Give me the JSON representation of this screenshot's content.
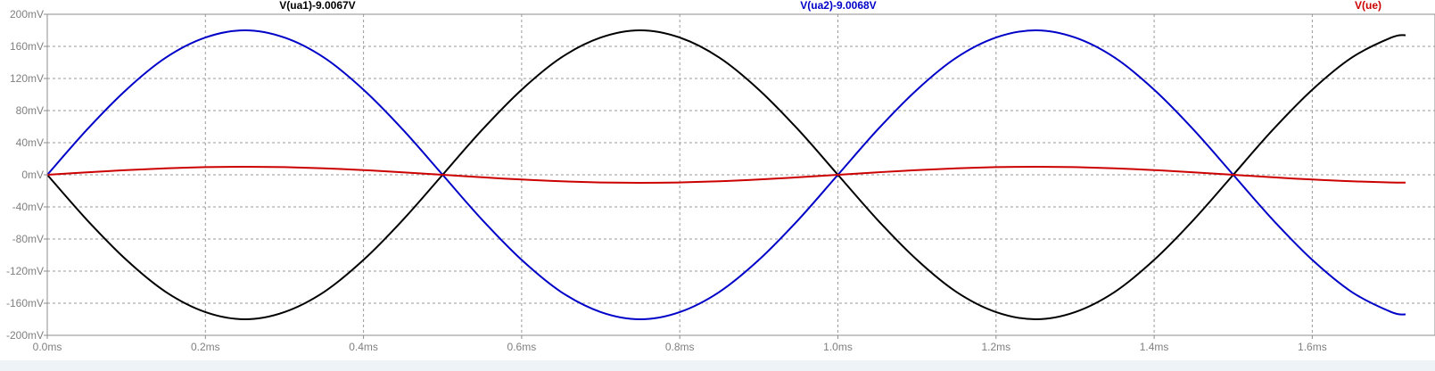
{
  "chart_data": {
    "type": "line",
    "title": "",
    "xlabel": "",
    "ylabel": "",
    "x_unit": "ms",
    "y_unit": "mV",
    "xlim": [
      0.0,
      1.718
    ],
    "ylim": [
      -200,
      200
    ],
    "grid": true,
    "x_ticks": [
      "0.0ms",
      "0.2ms",
      "0.4ms",
      "0.6ms",
      "0.8ms",
      "1.0ms",
      "1.2ms",
      "1.4ms",
      "1.6ms"
    ],
    "x_tick_values": [
      0.0,
      0.2,
      0.4,
      0.6,
      0.8,
      1.0,
      1.2,
      1.4,
      1.6
    ],
    "y_ticks": [
      "200mV",
      "160mV",
      "120mV",
      "80mV",
      "40mV",
      "0mV",
      "-40mV",
      "-80mV",
      "-120mV",
      "-160mV",
      "-200mV"
    ],
    "y_tick_values": [
      200,
      160,
      120,
      80,
      40,
      0,
      -40,
      -80,
      -120,
      -160,
      -200
    ],
    "x": [
      0.0,
      0.05,
      0.1,
      0.15,
      0.2,
      0.25,
      0.3,
      0.35,
      0.4,
      0.45,
      0.5,
      0.55,
      0.6,
      0.65,
      0.7,
      0.75,
      0.8,
      0.85,
      0.9,
      0.95,
      1.0,
      1.05,
      1.1,
      1.15,
      1.2,
      1.25,
      1.3,
      1.35,
      1.4,
      1.45,
      1.5,
      1.55,
      1.6,
      1.65,
      1.7,
      1.718
    ],
    "series": [
      {
        "name": "V(ua1)-9.0067V",
        "color": "#000000",
        "values": [
          0,
          -56,
          -106,
          -146,
          -171,
          -180,
          -171,
          -146,
          -106,
          -56,
          0,
          56,
          106,
          146,
          171,
          180,
          171,
          146,
          106,
          56,
          0,
          -56,
          -106,
          -146,
          -171,
          -180,
          -171,
          -146,
          -106,
          -56,
          0,
          56,
          106,
          146,
          171,
          174
        ]
      },
      {
        "name": "V(ua2)-9.0068V",
        "color": "#0000c8",
        "values": [
          0,
          56,
          106,
          146,
          171,
          180,
          171,
          146,
          106,
          56,
          0,
          -56,
          -106,
          -146,
          -171,
          -180,
          -171,
          -146,
          -106,
          -56,
          0,
          56,
          106,
          146,
          171,
          180,
          171,
          146,
          106,
          56,
          0,
          -56,
          -106,
          -146,
          -171,
          -174
        ]
      },
      {
        "name": "V(ue)",
        "color": "#cc0000",
        "values": [
          0,
          3.1,
          5.9,
          8.1,
          9.5,
          10,
          9.5,
          8.1,
          5.9,
          3.1,
          0,
          -3.1,
          -5.9,
          -8.1,
          -9.5,
          -10,
          -9.5,
          -8.1,
          -5.9,
          -3.1,
          0,
          3.1,
          5.9,
          8.1,
          9.5,
          10,
          9.5,
          8.1,
          5.9,
          3.1,
          0,
          -3.1,
          -5.9,
          -8.1,
          -9.5,
          -9.7
        ]
      }
    ]
  }
}
